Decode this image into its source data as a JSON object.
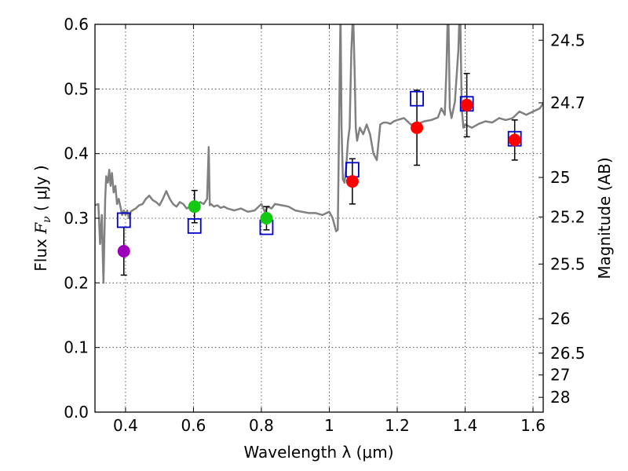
{
  "chart_data": {
    "type": "scatter",
    "title": "",
    "xlabel": "Wavelength  λ (μm)",
    "ylabel_prefix": "Flux  ",
    "ylabel_symbol": "F",
    "ylabel_subscript": "ν",
    "ylabel_suffix": "  ( μJy )",
    "y2label": "Magnitude (AB)",
    "xlim": [
      0.31,
      1.63
    ],
    "ylim": [
      0.0,
      0.6
    ],
    "x_ticks": [
      0.4,
      0.6,
      0.8,
      1.0,
      1.2,
      1.4,
      1.6
    ],
    "x_tick_labels": [
      "0.4",
      "0.6",
      "0.8",
      "1",
      "1.2",
      "1.4",
      "1.6"
    ],
    "y_ticks": [
      0.0,
      0.1,
      0.2,
      0.3,
      0.4,
      0.5,
      0.6
    ],
    "y_tick_labels": [
      "0.0",
      "0.1",
      "0.2",
      "0.3",
      "0.4",
      "0.5",
      "0.6"
    ],
    "y2_ticks": [
      {
        "label": "24.5",
        "flux": 0.5754
      },
      {
        "label": "24.7",
        "flux": 0.4786
      },
      {
        "label": "25",
        "flux": 0.3631
      },
      {
        "label": "25.2",
        "flux": 0.302
      },
      {
        "label": "25.5",
        "flux": 0.2291
      },
      {
        "label": "26",
        "flux": 0.1445
      },
      {
        "label": "26.5",
        "flux": 0.0912
      },
      {
        "label": "27",
        "flux": 0.0575
      },
      {
        "label": "28",
        "flux": 0.0229
      }
    ],
    "grid": true,
    "colors": {
      "model": "#808080",
      "observed_violet": "#9b00b8",
      "observed_green": "#14c814",
      "observed_red": "#ff0000",
      "model_box": "#0000cc",
      "errorbar": "#000000"
    },
    "series": [
      {
        "name": "model spectrum",
        "kind": "line",
        "x": [
          0.31,
          0.32,
          0.325,
          0.33,
          0.335,
          0.34,
          0.343,
          0.348,
          0.352,
          0.356,
          0.36,
          0.365,
          0.37,
          0.375,
          0.38,
          0.385,
          0.39,
          0.395,
          0.4,
          0.405,
          0.41,
          0.415,
          0.42,
          0.43,
          0.44,
          0.45,
          0.46,
          0.47,
          0.48,
          0.49,
          0.5,
          0.51,
          0.52,
          0.53,
          0.54,
          0.55,
          0.56,
          0.57,
          0.58,
          0.59,
          0.6,
          0.61,
          0.62,
          0.63,
          0.64,
          0.645,
          0.648,
          0.652,
          0.66,
          0.67,
          0.68,
          0.69,
          0.7,
          0.72,
          0.74,
          0.76,
          0.78,
          0.8,
          0.81,
          0.82,
          0.83,
          0.84,
          0.86,
          0.88,
          0.9,
          0.92,
          0.94,
          0.96,
          0.98,
          1.0,
          1.01,
          1.02,
          1.025,
          1.03,
          1.033,
          1.036,
          1.04,
          1.045,
          1.05,
          1.055,
          1.06,
          1.065,
          1.07,
          1.075,
          1.078,
          1.082,
          1.09,
          1.1,
          1.11,
          1.12,
          1.13,
          1.14,
          1.15,
          1.16,
          1.17,
          1.18,
          1.19,
          1.2,
          1.22,
          1.24,
          1.26,
          1.28,
          1.3,
          1.32,
          1.33,
          1.34,
          1.345,
          1.35,
          1.355,
          1.36,
          1.37,
          1.38,
          1.385,
          1.39,
          1.395,
          1.4,
          1.42,
          1.44,
          1.46,
          1.48,
          1.5,
          1.52,
          1.54,
          1.56,
          1.58,
          1.6,
          1.62,
          1.63
        ],
        "y": [
          0.32,
          0.322,
          0.26,
          0.305,
          0.2,
          0.33,
          0.365,
          0.355,
          0.375,
          0.35,
          0.37,
          0.34,
          0.35,
          0.322,
          0.33,
          0.318,
          0.305,
          0.312,
          0.305,
          0.312,
          0.3,
          0.31,
          0.312,
          0.315,
          0.32,
          0.322,
          0.33,
          0.335,
          0.328,
          0.325,
          0.32,
          0.33,
          0.342,
          0.33,
          0.322,
          0.318,
          0.325,
          0.322,
          0.315,
          0.318,
          0.315,
          0.32,
          0.325,
          0.322,
          0.33,
          0.41,
          0.32,
          0.322,
          0.318,
          0.32,
          0.316,
          0.318,
          0.315,
          0.312,
          0.315,
          0.31,
          0.312,
          0.322,
          0.31,
          0.318,
          0.315,
          0.322,
          0.32,
          0.318,
          0.312,
          0.31,
          0.308,
          0.308,
          0.305,
          0.31,
          0.3,
          0.28,
          0.282,
          0.5,
          0.62,
          0.44,
          0.36,
          0.355,
          0.38,
          0.42,
          0.44,
          0.56,
          0.62,
          0.52,
          0.44,
          0.42,
          0.44,
          0.43,
          0.445,
          0.43,
          0.4,
          0.39,
          0.445,
          0.448,
          0.448,
          0.446,
          0.45,
          0.452,
          0.455,
          0.445,
          0.446,
          0.45,
          0.452,
          0.456,
          0.47,
          0.46,
          0.53,
          0.64,
          0.47,
          0.455,
          0.48,
          0.56,
          0.64,
          0.47,
          0.44,
          0.445,
          0.44,
          0.446,
          0.45,
          0.448,
          0.455,
          0.452,
          0.455,
          0.465,
          0.46,
          0.465,
          0.47,
          0.478
        ]
      },
      {
        "name": "observed photometry",
        "kind": "points",
        "points": [
          {
            "x": 0.395,
            "y": 0.249,
            "err": 0.037,
            "color": "observed_violet"
          },
          {
            "x": 0.603,
            "y": 0.318,
            "err": 0.025,
            "color": "observed_green"
          },
          {
            "x": 0.815,
            "y": 0.3,
            "err": 0.018,
            "color": "observed_green"
          },
          {
            "x": 1.068,
            "y": 0.357,
            "err": 0.035,
            "color": "observed_red"
          },
          {
            "x": 1.258,
            "y": 0.44,
            "err": 0.058,
            "color": "observed_red"
          },
          {
            "x": 1.405,
            "y": 0.475,
            "err": 0.049,
            "color": "observed_red"
          },
          {
            "x": 1.546,
            "y": 0.421,
            "err": 0.031,
            "color": "observed_red"
          }
        ]
      },
      {
        "name": "model synthetic photometry",
        "kind": "boxes",
        "points": [
          {
            "x": 0.395,
            "y": 0.297
          },
          {
            "x": 0.603,
            "y": 0.288
          },
          {
            "x": 0.815,
            "y": 0.286
          },
          {
            "x": 1.068,
            "y": 0.375
          },
          {
            "x": 1.258,
            "y": 0.485
          },
          {
            "x": 1.405,
            "y": 0.477
          },
          {
            "x": 1.546,
            "y": 0.423
          }
        ]
      }
    ]
  }
}
